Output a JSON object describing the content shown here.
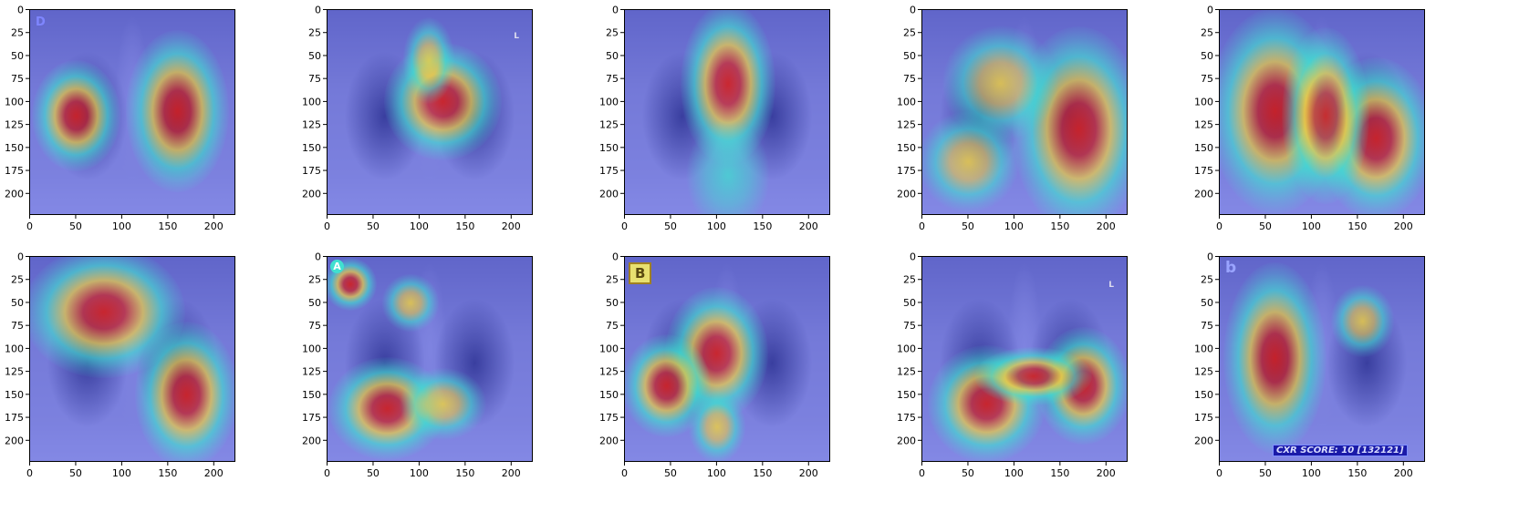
{
  "axes": {
    "x_ticks": [
      "0",
      "50",
      "100",
      "150",
      "200"
    ],
    "y_ticks": [
      "0",
      "25",
      "50",
      "75",
      "100",
      "125",
      "150",
      "175",
      "200"
    ],
    "x_range": [
      0,
      224
    ],
    "y_range": [
      0,
      224
    ]
  },
  "colors": {
    "hot": "#d21e1e",
    "warm": "#f0d040",
    "mid": "#40e0d0",
    "cool": "#3c46e6"
  },
  "panels": [
    {
      "id": "r1c1",
      "label_overlay": "D",
      "hotspots": [
        {
          "x": 50,
          "y": 115,
          "rx": 30,
          "ry": 38,
          "level": "hot"
        },
        {
          "x": 160,
          "y": 110,
          "rx": 35,
          "ry": 55,
          "level": "hot"
        }
      ]
    },
    {
      "id": "r1c2",
      "label_overlay": "L",
      "hotspots": [
        {
          "x": 125,
          "y": 100,
          "rx": 40,
          "ry": 40,
          "level": "hot"
        },
        {
          "x": 110,
          "y": 55,
          "rx": 18,
          "ry": 30,
          "level": "warm"
        }
      ]
    },
    {
      "id": "r1c3",
      "label_overlay": "",
      "hotspots": [
        {
          "x": 112,
          "y": 80,
          "rx": 32,
          "ry": 55,
          "level": "hot"
        },
        {
          "x": 112,
          "y": 180,
          "rx": 30,
          "ry": 40,
          "level": "mid"
        }
      ]
    },
    {
      "id": "r1c4",
      "label_overlay": "",
      "hotspots": [
        {
          "x": 170,
          "y": 130,
          "rx": 45,
          "ry": 70,
          "level": "hot"
        },
        {
          "x": 85,
          "y": 80,
          "rx": 40,
          "ry": 40,
          "level": "warm"
        },
        {
          "x": 50,
          "y": 165,
          "rx": 35,
          "ry": 35,
          "level": "warm"
        }
      ]
    },
    {
      "id": "r1c5",
      "label_overlay": "",
      "hotspots": [
        {
          "x": 60,
          "y": 110,
          "rx": 45,
          "ry": 70,
          "level": "hot"
        },
        {
          "x": 170,
          "y": 140,
          "rx": 40,
          "ry": 55,
          "level": "hot"
        },
        {
          "x": 115,
          "y": 115,
          "rx": 30,
          "ry": 60,
          "level": "hot"
        }
      ]
    },
    {
      "id": "r2c1",
      "label_overlay": "",
      "hotspots": [
        {
          "x": 80,
          "y": 60,
          "rx": 55,
          "ry": 45,
          "level": "hot"
        },
        {
          "x": 170,
          "y": 150,
          "rx": 35,
          "ry": 50,
          "level": "hot"
        }
      ]
    },
    {
      "id": "r2c2",
      "label_overlay": "A",
      "hotspots": [
        {
          "x": 65,
          "y": 165,
          "rx": 40,
          "ry": 35,
          "level": "hot"
        },
        {
          "x": 25,
          "y": 30,
          "rx": 18,
          "ry": 18,
          "level": "hot"
        },
        {
          "x": 90,
          "y": 50,
          "rx": 20,
          "ry": 20,
          "level": "warm"
        },
        {
          "x": 125,
          "y": 160,
          "rx": 30,
          "ry": 25,
          "level": "warm"
        }
      ]
    },
    {
      "id": "r2c3",
      "label_overlay": "B",
      "hotspots": [
        {
          "x": 100,
          "y": 105,
          "rx": 35,
          "ry": 45,
          "level": "hot"
        },
        {
          "x": 45,
          "y": 140,
          "rx": 30,
          "ry": 35,
          "level": "hot"
        },
        {
          "x": 100,
          "y": 185,
          "rx": 20,
          "ry": 25,
          "level": "warm"
        }
      ]
    },
    {
      "id": "r2c4",
      "label_overlay": "L",
      "hotspots": [
        {
          "x": 70,
          "y": 160,
          "rx": 40,
          "ry": 40,
          "level": "hot"
        },
        {
          "x": 175,
          "y": 140,
          "rx": 32,
          "ry": 40,
          "level": "hot"
        },
        {
          "x": 120,
          "y": 130,
          "rx": 40,
          "ry": 20,
          "level": "hot"
        }
      ]
    },
    {
      "id": "r2c5",
      "label_overlay": "b",
      "footer_text": "CXR SCORE: 10 [132121]",
      "hotspots": [
        {
          "x": 60,
          "y": 110,
          "rx": 35,
          "ry": 65,
          "level": "hot"
        },
        {
          "x": 155,
          "y": 70,
          "rx": 22,
          "ry": 25,
          "level": "warm"
        }
      ]
    }
  ]
}
